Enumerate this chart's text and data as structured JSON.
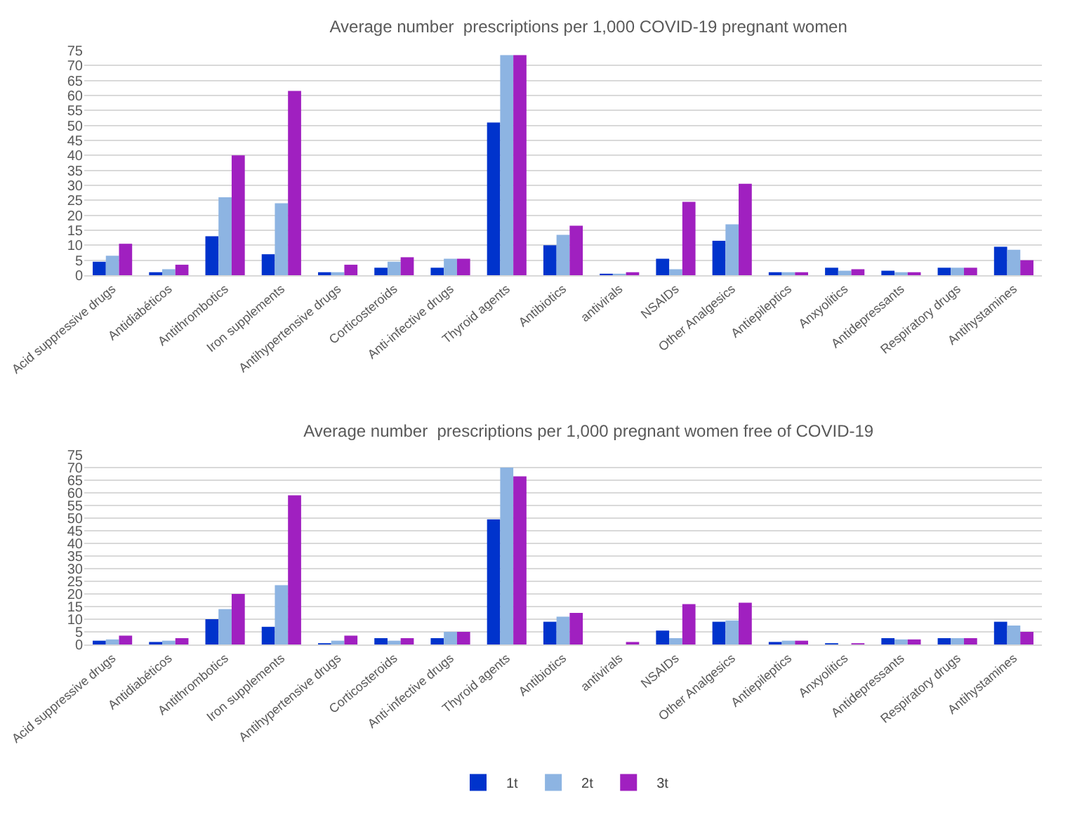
{
  "chart_data": [
    {
      "type": "bar",
      "title": "Average number  prescriptions per 1,000 COVID-19 pregnant women",
      "categories": [
        "Acid suppressive drugs",
        "Antidiabéticos",
        "Antithrombotics",
        "Iron supplements",
        "Antihypertensive drugs",
        "Corticosteroids",
        "Anti-infective drugs",
        "Thyroid agents",
        "Antibiotics",
        "antivirals",
        "NSAIDs",
        "Other Analgesics",
        "Antiepileptics",
        "Anxyolitics",
        "Antidepressants",
        "Respiratory drugs",
        "Antihystamines"
      ],
      "series": [
        {
          "color": "#0033cc",
          "values": [
            4.5,
            1,
            13,
            7,
            1,
            2.5,
            2.5,
            51,
            10,
            0.5,
            5.5,
            11.5,
            1,
            2.5,
            1.5,
            2.5,
            9.5
          ]
        },
        {
          "color": "#8db4e2",
          "values": [
            6.5,
            2,
            26,
            24,
            1,
            4.5,
            5.5,
            73.5,
            13.5,
            0.5,
            2,
            17,
            1,
            1.5,
            1,
            2.5,
            8.5
          ]
        },
        {
          "color": "#a020c0",
          "values": [
            10.5,
            3.5,
            40,
            61.5,
            3.5,
            6,
            5.5,
            73.5,
            16.5,
            1,
            24.5,
            30.5,
            1,
            2,
            1,
            2.5,
            5
          ]
        }
      ],
      "ylim": [
        0,
        75
      ],
      "yticks": [
        0,
        5,
        10,
        15,
        20,
        25,
        30,
        35,
        40,
        45,
        50,
        55,
        60,
        65,
        70,
        75
      ],
      "grid": "y",
      "legend": false
    },
    {
      "type": "bar",
      "title": "Average number  prescriptions per 1,000 pregnant women free of COVID-19",
      "categories": [
        "Acid suppressive drugs",
        "Antidiabéticos",
        "Antithrombotics",
        "Iron supplements",
        "Antihypertensive drugs",
        "Corticosteroids",
        "Anti-infective drugs",
        "Thyroid agents",
        "Antibiotics",
        "antivirals",
        "NSAIDs",
        "Other Analgesics",
        "Antiepileptics",
        "Anxyolitics",
        "Antidepressants",
        "Respiratory drugs",
        "Antihystamines"
      ],
      "series": [
        {
          "name": "1t",
          "color": "#0033cc",
          "values": [
            1.5,
            1,
            10,
            7,
            0.5,
            2.5,
            2.5,
            49.5,
            9,
            null,
            5.5,
            9,
            1,
            0.5,
            2.5,
            2.5,
            9
          ]
        },
        {
          "name": "2t",
          "color": "#8db4e2",
          "values": [
            2,
            1.5,
            14,
            23.5,
            1.5,
            1.5,
            5,
            70,
            11,
            null,
            2.5,
            9.5,
            1.5,
            null,
            2,
            2.5,
            7.5
          ]
        },
        {
          "name": "3t",
          "color": "#a020c0",
          "values": [
            3.5,
            2.5,
            20,
            59,
            3.5,
            2.5,
            5,
            66.5,
            12.5,
            1,
            16,
            16.5,
            1.5,
            0.5,
            2,
            2.5,
            5
          ]
        }
      ],
      "ylim": [
        0,
        75
      ],
      "yticks": [
        0,
        5,
        10,
        15,
        20,
        25,
        30,
        35,
        40,
        45,
        50,
        55,
        60,
        65,
        70,
        75
      ],
      "grid": "y",
      "legend": "bottom"
    }
  ]
}
